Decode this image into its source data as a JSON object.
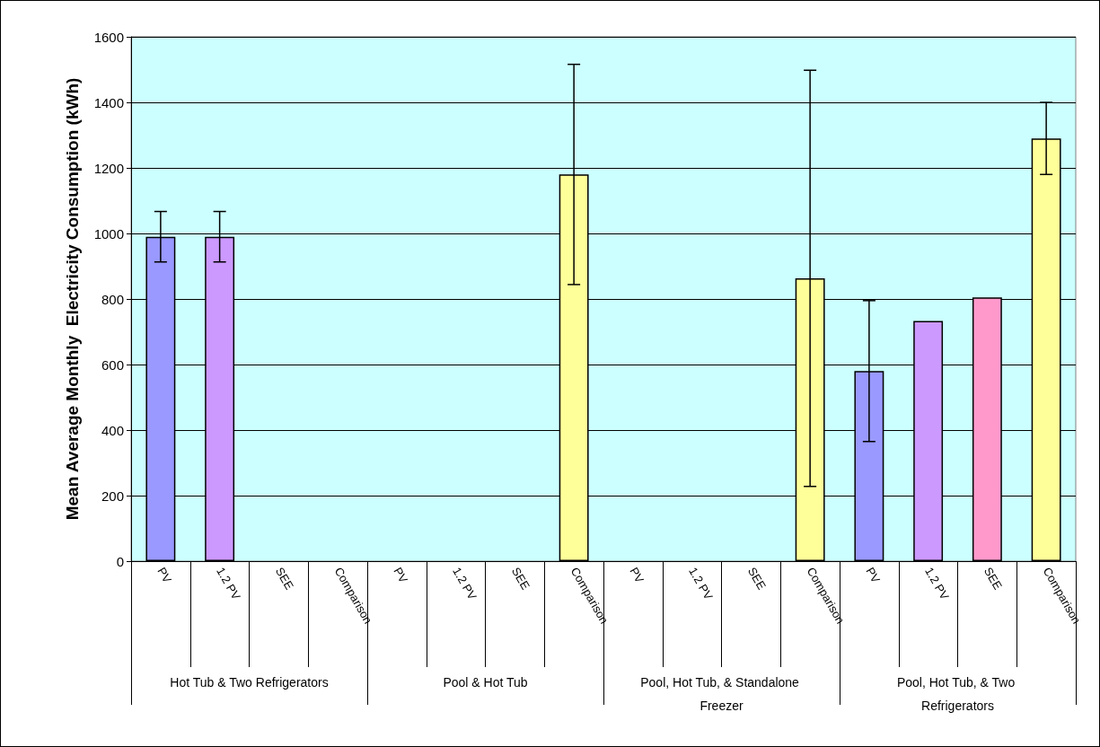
{
  "chart_data": {
    "type": "bar",
    "ylabel": "Mean Average Monthly  Electricity Consumption (kWh)",
    "categories": [
      "Hot Tub & Two Refrigerators",
      "Pool & Hot Tub",
      "Pool, Hot Tub, & Standalone Freezer",
      "Pool, Hot Tub, & Two Refrigerators"
    ],
    "series": [
      {
        "name": "PV",
        "color": "#9999ff",
        "values": [
          990,
          null,
          null,
          580
        ],
        "errors": [
          77,
          null,
          null,
          215
        ]
      },
      {
        "name": "1.2 PV",
        "color": "#cc99ff",
        "values": [
          990,
          null,
          null,
          733
        ],
        "errors": [
          77,
          null,
          null,
          null
        ]
      },
      {
        "name": "SEE",
        "color": "#ff99cc",
        "values": [
          null,
          null,
          null,
          805
        ]
      },
      {
        "name": "Comparison",
        "color": "#ffff99",
        "values": [
          null,
          1180,
          863,
          1290
        ],
        "errors": [
          null,
          336,
          635,
          110
        ]
      }
    ],
    "ylim": [
      0,
      1600
    ],
    "yticks": [
      0,
      200,
      400,
      600,
      800,
      1000,
      1200,
      1400,
      1600
    ],
    "grid": "y"
  }
}
